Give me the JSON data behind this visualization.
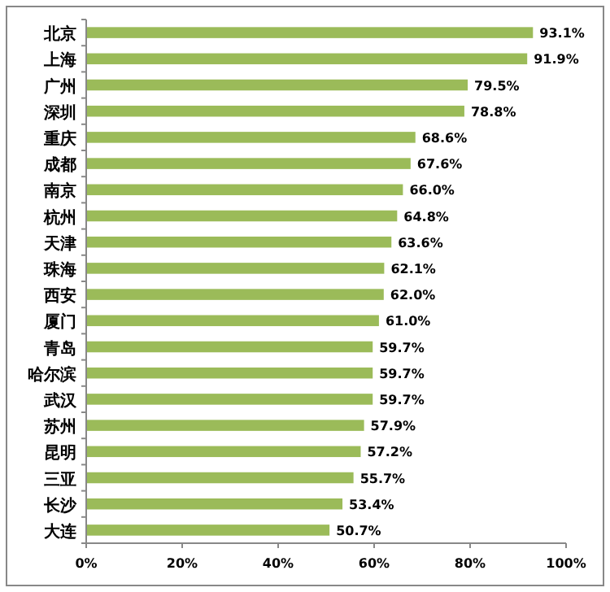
{
  "chart_data": {
    "type": "bar",
    "orientation": "horizontal",
    "categories": [
      "北京",
      "上海",
      "广州",
      "深圳",
      "重庆",
      "成都",
      "南京",
      "杭州",
      "天津",
      "珠海",
      "西安",
      "厦门",
      "青岛",
      "哈尔滨",
      "武汉",
      "苏州",
      "昆明",
      "三亚",
      "长沙",
      "大连"
    ],
    "values": [
      93.1,
      91.9,
      79.5,
      78.8,
      68.6,
      67.6,
      66.0,
      64.8,
      63.6,
      62.1,
      62.0,
      61.0,
      59.7,
      59.7,
      59.7,
      57.9,
      57.2,
      55.7,
      53.4,
      50.7
    ],
    "value_labels": [
      "93.1%",
      "91.9%",
      "79.5%",
      "78.8%",
      "68.6%",
      "67.6%",
      "66.0%",
      "64.8%",
      "63.6%",
      "62.1%",
      "62.0%",
      "61.0%",
      "59.7%",
      "59.7%",
      "59.7%",
      "57.9%",
      "57.2%",
      "55.7%",
      "53.4%",
      "50.7%"
    ],
    "color": "#9bbb59",
    "xlim": [
      0,
      100
    ],
    "xticks": [
      {
        "value": 0,
        "label": "0%"
      },
      {
        "value": 20,
        "label": "20%"
      },
      {
        "value": 40,
        "label": "40%"
      },
      {
        "value": 60,
        "label": "60%"
      },
      {
        "value": 80,
        "label": "80%"
      },
      {
        "value": 100,
        "label": "100%"
      }
    ],
    "grid": false
  }
}
